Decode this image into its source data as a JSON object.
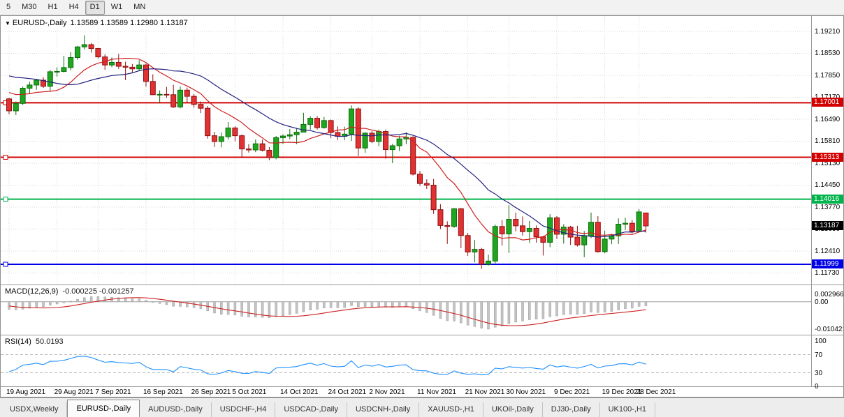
{
  "toolbar": {
    "timeframes": [
      {
        "label": "5",
        "active": false
      },
      {
        "label": "M30",
        "active": false
      },
      {
        "label": "H1",
        "active": false
      },
      {
        "label": "H4",
        "active": false
      },
      {
        "label": "D1",
        "active": true
      },
      {
        "label": "W1",
        "active": false
      },
      {
        "label": "MN",
        "active": false
      }
    ]
  },
  "header": {
    "symbol": "EURUSD-,Daily",
    "ohlc": "1.13589 1.13589 1.12980 1.13187"
  },
  "price_axis": {
    "ticks": [
      "1.19210",
      "1.18530",
      "1.17850",
      "1.17170",
      "1.16490",
      "1.15810",
      "1.15130",
      "1.14450",
      "1.13770",
      "1.13090",
      "1.12410",
      "1.11730"
    ]
  },
  "hlines": [
    {
      "value": 1.17001,
      "label": "1.17001",
      "color": "#d40000"
    },
    {
      "value": 1.15313,
      "label": "1.15313",
      "color": "#d40000"
    },
    {
      "value": 1.14016,
      "label": "1.14016",
      "color": "#00b44c"
    },
    {
      "value": 1.11999,
      "label": "1.11999",
      "color": "#0000e6"
    }
  ],
  "current_price": {
    "label": "1.13187",
    "value": 1.13187,
    "color": "#000000"
  },
  "indicators": {
    "macd": {
      "title": "MACD(12,26,9)",
      "values": "-0.000225 -0.001257",
      "axis": [
        {
          "text": "0.002966",
          "value": 0.002966
        },
        {
          "text": "0.00",
          "value": 0
        },
        {
          "text": "-0.010421",
          "value": -0.010421
        }
      ]
    },
    "rsi": {
      "title": "RSI(14)",
      "value": "50.0193",
      "axis": [
        {
          "text": "100",
          "value": 100
        },
        {
          "text": "70",
          "value": 70
        },
        {
          "text": "30",
          "value": 30
        },
        {
          "text": "0",
          "value": 0
        }
      ]
    }
  },
  "x_axis": {
    "labels": [
      {
        "text": "19 Aug 2021",
        "index": 0
      },
      {
        "text": "29 Aug 2021",
        "index": 7
      },
      {
        "text": "7 Sep 2021",
        "index": 13
      },
      {
        "text": "16 Sep 2021",
        "index": 20
      },
      {
        "text": "26 Sep 2021",
        "index": 27
      },
      {
        "text": "5 Oct 2021",
        "index": 33
      },
      {
        "text": "14 Oct 2021",
        "index": 40
      },
      {
        "text": "24 Oct 2021",
        "index": 47
      },
      {
        "text": "2 Nov 2021",
        "index": 53
      },
      {
        "text": "11 Nov 2021",
        "index": 60
      },
      {
        "text": "21 Nov 2021",
        "index": 67
      },
      {
        "text": "30 Nov 2021",
        "index": 73
      },
      {
        "text": "9 Dec 2021",
        "index": 80
      },
      {
        "text": "19 Dec 2021",
        "index": 87
      },
      {
        "text": "28 Dec 2021",
        "index": 92
      }
    ]
  },
  "tabs": [
    {
      "label": "USDX,Weekly",
      "active": false
    },
    {
      "label": "EURUSD-,Daily",
      "active": true
    },
    {
      "label": "AUDUSD-,Daily",
      "active": false
    },
    {
      "label": "USDCHF-,H4",
      "active": false
    },
    {
      "label": "USDCAD-,Daily",
      "active": false
    },
    {
      "label": "USDCNH-,Daily",
      "active": false
    },
    {
      "label": "XAUUSD-,H1",
      "active": false
    },
    {
      "label": "UKOil-,Daily",
      "active": false
    },
    {
      "label": "DJ30-,Daily",
      "active": false
    },
    {
      "label": "UK100-,H1",
      "active": false
    }
  ],
  "chart_data": {
    "type": "candlestick",
    "symbol": "EURUSD-",
    "timeframe": "Daily",
    "ohlc_display": {
      "open": "1.13589",
      "high": "1.13589",
      "low": "1.12980",
      "close": "1.13187"
    },
    "moving_averages": [
      {
        "name": "fast",
        "method": "sma",
        "period": 10,
        "color": "#cc2020"
      },
      {
        "name": "slow",
        "method": "sma",
        "period": 20,
        "color": "#23237f"
      }
    ],
    "macd_params": {
      "fast": 12,
      "slow": 26,
      "signal": 9,
      "signal_color": "#cc2020",
      "hist_color": "#c4c4c4"
    },
    "rsi_params": {
      "period": 14,
      "levels": [
        30,
        70
      ],
      "color": "#1e90ff"
    },
    "prehistory_closes": [
      1.1813,
      1.1806,
      1.1798,
      1.18,
      1.1782,
      1.1784,
      1.1793,
      1.1771,
      1.1802,
      1.1818,
      1.1839,
      1.1868,
      1.1888,
      1.187,
      1.1862,
      1.1839,
      1.1761,
      1.1738,
      1.1735,
      1.173,
      1.1732,
      1.1779,
      1.1771,
      1.1711,
      1.1684
    ],
    "candles": [
      [
        1.1712,
        1.1715,
        1.1665,
        1.1675
      ],
      [
        1.1675,
        1.1704,
        1.1662,
        1.1698
      ],
      [
        1.1698,
        1.175,
        1.1693,
        1.1745
      ],
      [
        1.1745,
        1.1765,
        1.1727,
        1.1755
      ],
      [
        1.1755,
        1.1774,
        1.174,
        1.177
      ],
      [
        1.177,
        1.1779,
        1.1746,
        1.1751
      ],
      [
        1.1751,
        1.1802,
        1.1735,
        1.1796
      ],
      [
        1.1796,
        1.181,
        1.1781,
        1.1797
      ],
      [
        1.1797,
        1.1845,
        1.1794,
        1.1809
      ],
      [
        1.1809,
        1.1857,
        1.18,
        1.184
      ],
      [
        1.184,
        1.1876,
        1.1833,
        1.1873
      ],
      [
        1.1873,
        1.1909,
        1.1865,
        1.188
      ],
      [
        1.188,
        1.1885,
        1.1855,
        1.1868
      ],
      [
        1.1868,
        1.187,
        1.1837,
        1.1842
      ],
      [
        1.1842,
        1.185,
        1.1802,
        1.1817
      ],
      [
        1.1817,
        1.184,
        1.181,
        1.1825
      ],
      [
        1.1825,
        1.1851,
        1.1805,
        1.1813
      ],
      [
        1.1813,
        1.1827,
        1.177,
        1.181
      ],
      [
        1.181,
        1.182,
        1.1792,
        1.1805
      ],
      [
        1.1805,
        1.1832,
        1.18,
        1.1817
      ],
      [
        1.1817,
        1.1821,
        1.175,
        1.1766
      ],
      [
        1.1766,
        1.1788,
        1.1724,
        1.1725
      ],
      [
        1.1725,
        1.1738,
        1.17,
        1.1726
      ],
      [
        1.1726,
        1.1749,
        1.1715,
        1.1725
      ],
      [
        1.1725,
        1.1756,
        1.1684,
        1.1687
      ],
      [
        1.1687,
        1.175,
        1.1683,
        1.1739
      ],
      [
        1.1739,
        1.1747,
        1.1701,
        1.172
      ],
      [
        1.172,
        1.1727,
        1.1685,
        1.1695
      ],
      [
        1.1695,
        1.1704,
        1.1668,
        1.1683
      ],
      [
        1.1683,
        1.169,
        1.1589,
        1.1598
      ],
      [
        1.1598,
        1.161,
        1.1563,
        1.158
      ],
      [
        1.158,
        1.1608,
        1.1562,
        1.1595
      ],
      [
        1.1595,
        1.164,
        1.1586,
        1.1622
      ],
      [
        1.1622,
        1.1627,
        1.1581,
        1.1598
      ],
      [
        1.1598,
        1.1602,
        1.1529,
        1.1557
      ],
      [
        1.1557,
        1.1572,
        1.1546,
        1.1554
      ],
      [
        1.1554,
        1.1586,
        1.1547,
        1.1573
      ],
      [
        1.1573,
        1.1586,
        1.1549,
        1.1553
      ],
      [
        1.1553,
        1.1563,
        1.1522,
        1.153
      ],
      [
        1.153,
        1.1597,
        1.1525,
        1.1592
      ],
      [
        1.1592,
        1.1602,
        1.1572,
        1.1597
      ],
      [
        1.1597,
        1.1619,
        1.1587,
        1.1601
      ],
      [
        1.1601,
        1.1622,
        1.1572,
        1.1609
      ],
      [
        1.1609,
        1.1669,
        1.1609,
        1.1633
      ],
      [
        1.1633,
        1.1658,
        1.1617,
        1.1652
      ],
      [
        1.1652,
        1.1659,
        1.1617,
        1.1623
      ],
      [
        1.1623,
        1.1656,
        1.162,
        1.1645
      ],
      [
        1.1645,
        1.1648,
        1.159,
        1.1608
      ],
      [
        1.1608,
        1.1627,
        1.1585,
        1.1596
      ],
      [
        1.1596,
        1.1626,
        1.1584,
        1.1603
      ],
      [
        1.1603,
        1.1692,
        1.1582,
        1.1681
      ],
      [
        1.1681,
        1.1686,
        1.1535,
        1.156
      ],
      [
        1.156,
        1.1609,
        1.1545,
        1.1606
      ],
      [
        1.1606,
        1.1612,
        1.1575,
        1.158
      ],
      [
        1.158,
        1.1617,
        1.1565,
        1.1611
      ],
      [
        1.1611,
        1.1617,
        1.1527,
        1.1555
      ],
      [
        1.1555,
        1.1573,
        1.1513,
        1.1567
      ],
      [
        1.1567,
        1.1598,
        1.1551,
        1.1588
      ],
      [
        1.1588,
        1.1609,
        1.1572,
        1.1593
      ],
      [
        1.1593,
        1.1596,
        1.1475,
        1.1479
      ],
      [
        1.1479,
        1.1489,
        1.1443,
        1.145
      ],
      [
        1.145,
        1.1463,
        1.1433,
        1.1445
      ],
      [
        1.1445,
        1.1464,
        1.1356,
        1.1369
      ],
      [
        1.1369,
        1.1386,
        1.1309,
        1.132
      ],
      [
        1.132,
        1.1333,
        1.1263,
        1.1317
      ],
      [
        1.1317,
        1.1374,
        1.1313,
        1.1372
      ],
      [
        1.1372,
        1.1374,
        1.125,
        1.1289
      ],
      [
        1.1289,
        1.1297,
        1.1226,
        1.1238
      ],
      [
        1.1238,
        1.1275,
        1.1206,
        1.1246
      ],
      [
        1.1246,
        1.1251,
        1.1186,
        1.12
      ],
      [
        1.12,
        1.123,
        1.1196,
        1.121
      ],
      [
        1.121,
        1.1323,
        1.1203,
        1.1317
      ],
      [
        1.1317,
        1.1337,
        1.1258,
        1.1294
      ],
      [
        1.1294,
        1.1383,
        1.1235,
        1.1339
      ],
      [
        1.1339,
        1.136,
        1.1302,
        1.1319
      ],
      [
        1.1319,
        1.1348,
        1.1289,
        1.1301
      ],
      [
        1.1301,
        1.1334,
        1.1266,
        1.1311
      ],
      [
        1.1311,
        1.132,
        1.1267,
        1.1285
      ],
      [
        1.1285,
        1.1288,
        1.1227,
        1.1268
      ],
      [
        1.1268,
        1.1355,
        1.1253,
        1.1344
      ],
      [
        1.1344,
        1.1349,
        1.1278,
        1.1293
      ],
      [
        1.1293,
        1.1324,
        1.1264,
        1.1315
      ],
      [
        1.1315,
        1.1319,
        1.126,
        1.1284
      ],
      [
        1.1284,
        1.1319,
        1.1255,
        1.126
      ],
      [
        1.126,
        1.1303,
        1.1222,
        1.1288
      ],
      [
        1.1288,
        1.136,
        1.1281,
        1.133
      ],
      [
        1.133,
        1.1349,
        1.1236,
        1.1239
      ],
      [
        1.1239,
        1.1304,
        1.1234,
        1.1278
      ],
      [
        1.1278,
        1.1294,
        1.1262,
        1.1288
      ],
      [
        1.1288,
        1.1342,
        1.1263,
        1.1324
      ],
      [
        1.1324,
        1.1344,
        1.1306,
        1.1327
      ],
      [
        1.1327,
        1.1337,
        1.1296,
        1.1302
      ],
      [
        1.1302,
        1.1371,
        1.1298,
        1.1362
      ],
      [
        1.13589,
        1.13589,
        1.1298,
        1.13187
      ]
    ]
  }
}
